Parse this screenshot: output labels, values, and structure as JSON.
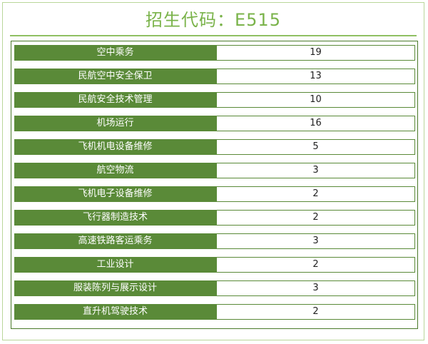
{
  "title": "招生代码：E515",
  "rows": [
    {
      "name": "空中乘务",
      "count": "19"
    },
    {
      "name": "民航空中安全保卫",
      "count": "13"
    },
    {
      "name": "民航安全技术管理",
      "count": "10"
    },
    {
      "name": "机场运行",
      "count": "16"
    },
    {
      "name": "飞机机电设备维修",
      "count": "5"
    },
    {
      "name": "航空物流",
      "count": "3"
    },
    {
      "name": "飞机电子设备维修",
      "count": "2"
    },
    {
      "name": "飞行器制造技术",
      "count": "2"
    },
    {
      "name": "高速铁路客运乘务",
      "count": "3"
    },
    {
      "name": "工业设计",
      "count": "2"
    },
    {
      "name": "服装陈列与展示设计",
      "count": "3"
    },
    {
      "name": "直升机驾驶技术",
      "count": "2"
    }
  ],
  "colors": {
    "title": "#7ab34a",
    "rule": "#8fc062",
    "name_cell": "#5a8a38",
    "border": "#4a7a2a"
  }
}
